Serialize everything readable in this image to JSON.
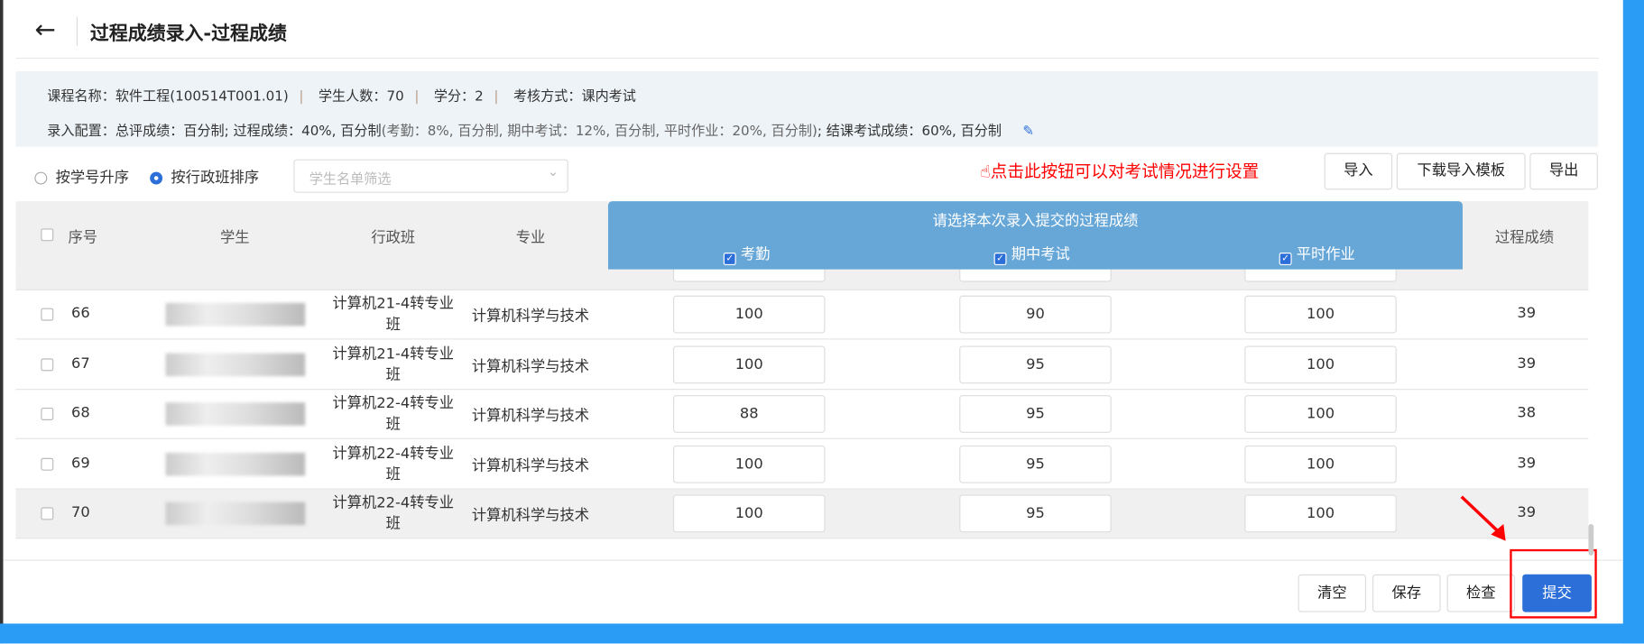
{
  "header": {
    "title": "过程成绩录入-过程成绩"
  },
  "info": {
    "course": "课程名称：软件工程(100514T001.01)",
    "students": "学生人数：70",
    "credit": "学分：2",
    "exam_type": "考核方式：课内考试",
    "config_a": "录入配置：总评成绩：百分制; 过程成绩：40%, 百分制",
    "config_b": "(考勤：8%, 百分制, 期中考试：12%, 百分制, 平时作业：20%, 百分制)",
    "config_c": "; 结课考试成绩：60%, 百分制"
  },
  "sort": {
    "by_id": "按学号升序",
    "by_class": "按行政班排序",
    "selected": "按行政班排序"
  },
  "filter": {
    "placeholder": "学生名单筛选"
  },
  "hint": "点击此按钮可以对考试情况进行设置",
  "toolbar": {
    "import": "导入",
    "download_template": "下载导入模板",
    "export": "导出"
  },
  "table": {
    "headers": {
      "seq": "序号",
      "student": "学生",
      "class": "行政班",
      "major": "专业",
      "process": "过程成绩"
    },
    "group_title": "请选择本次录入提交的过程成绩",
    "items": [
      {
        "label": "考勤",
        "checked": true
      },
      {
        "label": "期中考试",
        "checked": true
      },
      {
        "label": "平时作业",
        "checked": true
      }
    ],
    "rows": [
      {
        "seq": "66",
        "class": "计算机21-4转专业班",
        "major": "计算机科学与技术",
        "attendance": "100",
        "midterm": "90",
        "homework": "100",
        "score": "39"
      },
      {
        "seq": "67",
        "class": "计算机21-4转专业班",
        "major": "计算机科学与技术",
        "attendance": "100",
        "midterm": "95",
        "homework": "100",
        "score": "39"
      },
      {
        "seq": "68",
        "class": "计算机22-4转专业班",
        "major": "计算机科学与技术",
        "attendance": "88",
        "midterm": "95",
        "homework": "100",
        "score": "38"
      },
      {
        "seq": "69",
        "class": "计算机22-4转专业班",
        "major": "计算机科学与技术",
        "attendance": "100",
        "midterm": "95",
        "homework": "100",
        "score": "39"
      },
      {
        "seq": "70",
        "class": "计算机22-4转专业班",
        "major": "计算机科学与技术",
        "attendance": "100",
        "midterm": "95",
        "homework": "100",
        "score": "39"
      }
    ]
  },
  "footer": {
    "clear": "清空",
    "save": "保存",
    "check": "检查",
    "submit": "提交"
  },
  "colors": {
    "accent": "#2c6fd8",
    "group_header": "#67a7d8",
    "hint": "#ff0000"
  }
}
